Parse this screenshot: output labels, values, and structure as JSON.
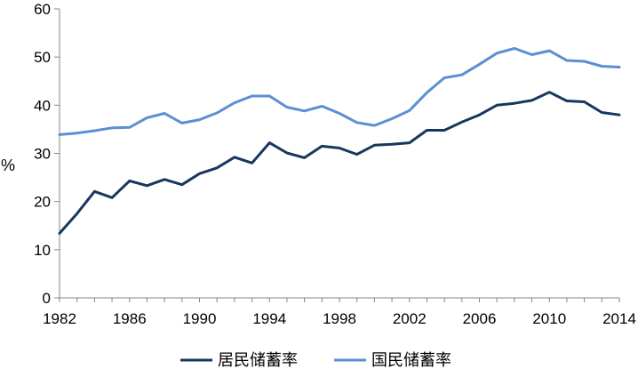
{
  "chart_data": {
    "type": "line",
    "title": "",
    "xlabel": "",
    "ylabel": "%",
    "ylim": [
      0,
      60
    ],
    "yticks": [
      0,
      10,
      20,
      30,
      40,
      50,
      60
    ],
    "xlim": [
      1982,
      2014
    ],
    "xticks": [
      1982,
      1986,
      1990,
      1994,
      1998,
      2002,
      2006,
      2010,
      2014
    ],
    "grid": false,
    "legend": "bottom",
    "x": [
      1982,
      1983,
      1984,
      1985,
      1986,
      1987,
      1988,
      1989,
      1990,
      1991,
      1992,
      1993,
      1994,
      1995,
      1996,
      1997,
      1998,
      1999,
      2000,
      2001,
      2002,
      2003,
      2004,
      2005,
      2006,
      2007,
      2008,
      2009,
      2010,
      2011,
      2012,
      2013,
      2014
    ],
    "series": [
      {
        "name": "居民储蓄率",
        "color": "#17375e",
        "values": [
          13.4,
          17.5,
          22.1,
          20.8,
          24.3,
          23.3,
          24.6,
          23.5,
          25.8,
          27.0,
          29.2,
          28.0,
          32.2,
          30.1,
          29.1,
          31.5,
          31.1,
          29.8,
          31.7,
          31.9,
          32.2,
          34.8,
          34.8,
          36.5,
          38.0,
          40.0,
          40.4,
          41.0,
          42.7,
          40.9,
          40.7,
          38.5,
          38.0
        ]
      },
      {
        "name": "国民储蓄率",
        "color": "#5b8fd4",
        "values": [
          33.9,
          34.2,
          34.7,
          35.3,
          35.4,
          37.4,
          38.3,
          36.3,
          37.0,
          38.4,
          40.5,
          41.9,
          41.9,
          39.6,
          38.8,
          39.8,
          38.3,
          36.4,
          35.8,
          37.2,
          38.9,
          42.6,
          45.7,
          46.3,
          48.5,
          50.8,
          51.8,
          50.5,
          51.3,
          49.3,
          49.1,
          48.1,
          47.9
        ]
      }
    ]
  }
}
